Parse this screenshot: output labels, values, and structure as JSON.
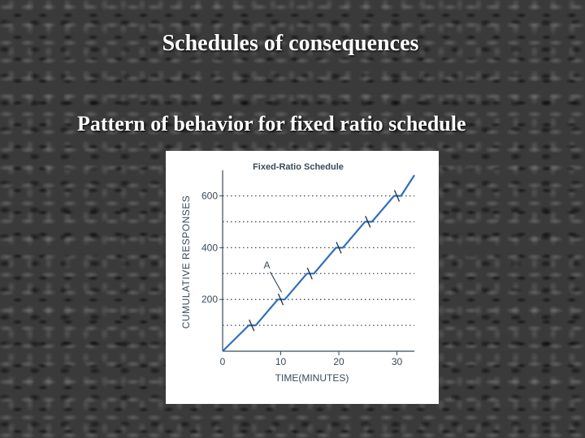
{
  "slide": {
    "title": "Schedules of consequences",
    "subtitle": "Pattern of behavior for fixed ratio schedule"
  },
  "chart_data": {
    "type": "line",
    "title": "Fixed-Ratio Schedule",
    "xlabel": "TIME(MINUTES)",
    "ylabel": "CUMULATIVE RESPONSES",
    "xlim": [
      0,
      33
    ],
    "ylim": [
      0,
      680
    ],
    "x_ticks": [
      0,
      10,
      20,
      30
    ],
    "x_tick_labels": [
      "0",
      "10",
      "20",
      "30"
    ],
    "y_ticks": [
      200,
      400,
      600
    ],
    "y_tick_labels": [
      "200",
      "400",
      "600"
    ],
    "grid_y": [
      100,
      200,
      300,
      400,
      500,
      600
    ],
    "grid": "dotted horizontal",
    "line_color": "#2f6fb8",
    "series": [
      {
        "x": [
          0,
          4.5,
          5.7,
          9.5,
          10.7,
          14.5,
          15.7,
          19.5,
          20.7,
          24.5,
          25.7,
          29.5,
          30.7,
          33
        ],
        "y": [
          0,
          100,
          100,
          200,
          200,
          300,
          300,
          400,
          400,
          500,
          500,
          600,
          600,
          680
        ]
      }
    ],
    "reinforcement_marks": [
      {
        "x": 5,
        "y": 100
      },
      {
        "x": 10,
        "y": 200
      },
      {
        "x": 15,
        "y": 300
      },
      {
        "x": 20,
        "y": 400
      },
      {
        "x": 25,
        "y": 500
      },
      {
        "x": 30,
        "y": 600
      }
    ],
    "annotation": {
      "text": "A",
      "x": 10,
      "y": 200
    }
  }
}
